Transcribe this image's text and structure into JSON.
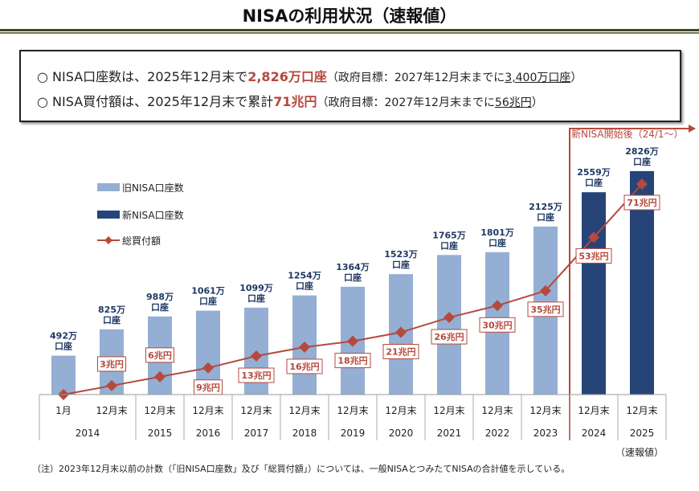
{
  "title": "NISAの利用状況（速報値）",
  "summary": {
    "line1": {
      "prefix": "○ NISA口座数は、2025年12月末で",
      "highlight": "2,826万口座",
      "paren_open": "（政府目標：2027年12月末までに",
      "target": "3,400万口座",
      "paren_close": "）"
    },
    "line2": {
      "prefix": "○ NISA買付額は、2025年12月末で累計",
      "highlight": "71兆円",
      "paren_open": "（政府目標：2027年12月末までに",
      "target": "56兆円",
      "paren_close": "）"
    }
  },
  "new_nisa_label": "新NISA開始後（24/1～）",
  "prelim_label": "（速報値）",
  "note": "（注）2023年12月末以前の計数（「旧NISA口座数」及び「総買付額」）については、一般NISAとつみたてNISAの合計値を示している。",
  "colors": {
    "old_nisa": "#94afd3",
    "new_nisa": "#264478",
    "line": "#b5493d",
    "label_text_bar": "#1f3864"
  },
  "chart_data": {
    "type": "bar+line",
    "legend": [
      "旧NISA口座数",
      "新NISA口座数",
      "総買付額"
    ],
    "legend_placement": "top-left",
    "categories": [
      {
        "month": "1月",
        "year": "2014"
      },
      {
        "month": "12月末",
        "year": "2014"
      },
      {
        "month": "12月末",
        "year": "2015"
      },
      {
        "month": "12月末",
        "year": "2016"
      },
      {
        "month": "12月末",
        "year": "2017"
      },
      {
        "month": "12月末",
        "year": "2018"
      },
      {
        "month": "12月末",
        "year": "2019"
      },
      {
        "month": "12月末",
        "year": "2020"
      },
      {
        "month": "12月末",
        "year": "2021"
      },
      {
        "month": "12月末",
        "year": "2022"
      },
      {
        "month": "12月末",
        "year": "2023"
      },
      {
        "month": "12月末",
        "year": "2024"
      },
      {
        "month": "12月末",
        "year": "2025"
      }
    ],
    "series": [
      {
        "name": "旧NISA口座数",
        "type": "bar",
        "unit": "万口座",
        "values": [
          492,
          825,
          988,
          1061,
          1099,
          1254,
          1364,
          1523,
          1765,
          1801,
          2125,
          null,
          null
        ],
        "labels": [
          "492万",
          "825万",
          "988万",
          "1061万",
          "1099万",
          "1254万",
          "1364万",
          "1523万",
          "1765万",
          "1801万",
          "2125万",
          null,
          null
        ]
      },
      {
        "name": "新NISA口座数",
        "type": "bar",
        "unit": "万口座",
        "values": [
          null,
          null,
          null,
          null,
          null,
          null,
          null,
          null,
          null,
          null,
          null,
          2559,
          2826
        ],
        "labels": [
          null,
          null,
          null,
          null,
          null,
          null,
          null,
          null,
          null,
          null,
          null,
          "2559万",
          "2826万"
        ]
      },
      {
        "name": "総買付額",
        "type": "line",
        "unit": "兆円",
        "values": [
          0,
          3,
          6,
          9,
          13,
          16,
          18,
          21,
          26,
          30,
          35,
          53,
          71
        ],
        "labels": [
          null,
          "3兆円",
          "6兆円",
          "9兆円",
          "13兆円",
          "16兆円",
          "18兆円",
          "21兆円",
          "26兆円",
          "30兆円",
          "35兆円",
          "53兆円",
          "71兆円"
        ]
      }
    ],
    "bar_label_suffix": "口座"
  }
}
